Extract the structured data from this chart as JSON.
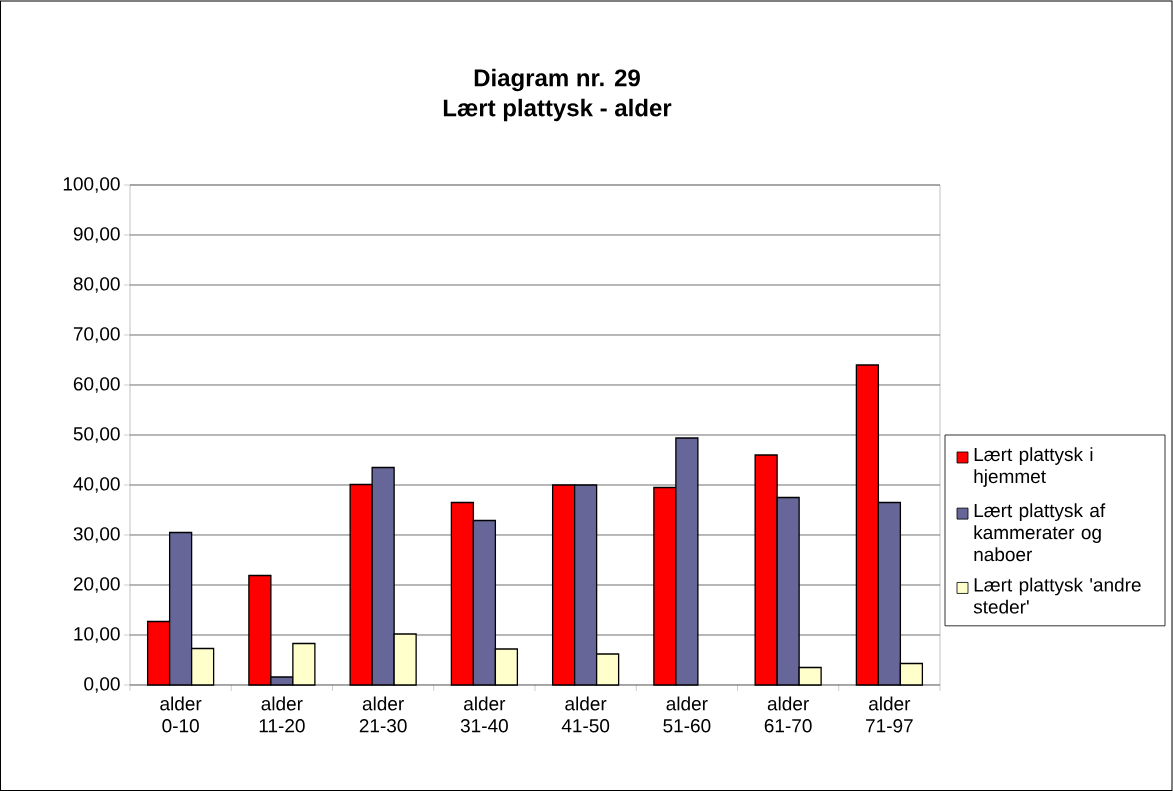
{
  "chart_data": {
    "type": "bar",
    "title": "Diagram nr. 29",
    "subtitle": "Lært plattysk - alder",
    "categories": [
      "alder 0-10",
      "alder 11-20",
      "alder 21-30",
      "alder 31-40",
      "alder 41-50",
      "alder 51-60",
      "alder 61-70",
      "alder 71-97"
    ],
    "series": [
      {
        "name": "Lært plattysk i hjemmet",
        "color": "#ff0000",
        "values": [
          12.7,
          21.9,
          40.1,
          36.5,
          40.0,
          39.5,
          46.0,
          64.0
        ]
      },
      {
        "name": "Lært plattysk af kammerater og naboer",
        "color": "#666699",
        "values": [
          30.5,
          1.6,
          43.5,
          32.9,
          40.0,
          49.4,
          37.5,
          36.5
        ]
      },
      {
        "name": "Lært plattysk 'andre steder'",
        "color": "#ffffcc",
        "values": [
          7.3,
          8.3,
          10.2,
          7.2,
          6.2,
          null,
          3.5,
          4.3
        ]
      }
    ],
    "ylim": [
      0,
      100
    ],
    "yticks": [
      {
        "value": 0,
        "label": "0,00"
      },
      {
        "value": 10,
        "label": "10,00"
      },
      {
        "value": 20,
        "label": "20,00"
      },
      {
        "value": 30,
        "label": "30,00"
      },
      {
        "value": 40,
        "label": "40,00"
      },
      {
        "value": 50,
        "label": "50,00"
      },
      {
        "value": 60,
        "label": "60,00"
      },
      {
        "value": 70,
        "label": "70,00"
      },
      {
        "value": 80,
        "label": "80,00"
      },
      {
        "value": 90,
        "label": "90,00"
      },
      {
        "value": 100,
        "label": "100,00"
      }
    ],
    "grid": "y",
    "legend": "right"
  }
}
